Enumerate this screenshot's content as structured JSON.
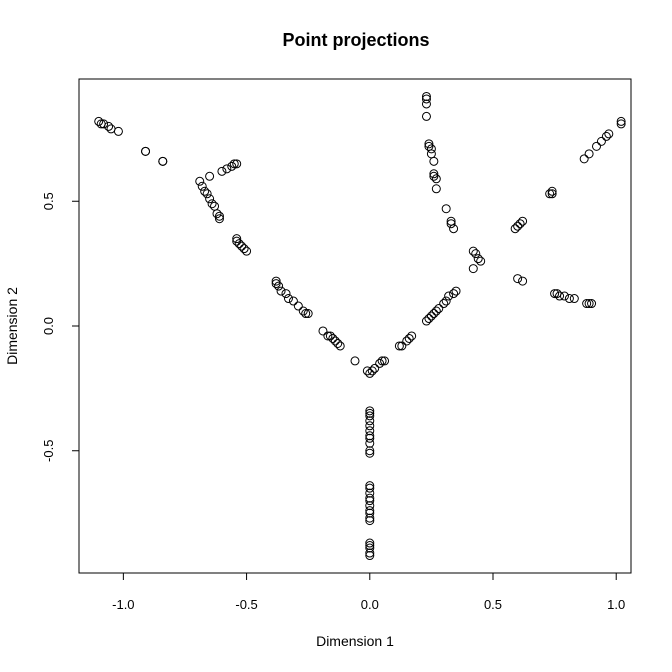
{
  "chart_data": {
    "type": "scatter",
    "title": "Point projections",
    "xlabel": "Dimension 1",
    "ylabel": "Dimension 2",
    "xlim": [
      -1.18,
      1.06
    ],
    "ylim": [
      -0.99,
      0.99
    ],
    "x_ticks": [
      -1.0,
      -0.5,
      0.0,
      0.5,
      1.0
    ],
    "x_tick_labels": [
      "-1.0",
      "-0.5",
      "0.0",
      "0.5",
      "1.0"
    ],
    "y_ticks": [
      -0.5,
      0.0,
      0.5
    ],
    "y_tick_labels": [
      "-0.5",
      "0.0",
      "0.5"
    ],
    "marker": "open-circle",
    "grid": false,
    "legend": "none",
    "points": [
      [
        -1.1,
        0.82
      ],
      [
        -1.09,
        0.81
      ],
      [
        -1.08,
        0.81
      ],
      [
        -1.06,
        0.8
      ],
      [
        -1.05,
        0.79
      ],
      [
        -1.02,
        0.78
      ],
      [
        -0.91,
        0.7
      ],
      [
        -0.91,
        0.7
      ],
      [
        -0.84,
        0.66
      ],
      [
        -0.84,
        0.66
      ],
      [
        -0.55,
        0.65
      ],
      [
        -0.54,
        0.65
      ],
      [
        -0.56,
        0.64
      ],
      [
        -0.58,
        0.63
      ],
      [
        -0.6,
        0.62
      ],
      [
        -0.65,
        0.6
      ],
      [
        -0.69,
        0.58
      ],
      [
        -0.68,
        0.56
      ],
      [
        -0.67,
        0.54
      ],
      [
        -0.66,
        0.53
      ],
      [
        -0.65,
        0.51
      ],
      [
        -0.64,
        0.49
      ],
      [
        -0.63,
        0.48
      ],
      [
        -0.62,
        0.45
      ],
      [
        -0.61,
        0.44
      ],
      [
        -0.61,
        0.43
      ],
      [
        -0.54,
        0.35
      ],
      [
        -0.54,
        0.34
      ],
      [
        -0.53,
        0.33
      ],
      [
        -0.52,
        0.32
      ],
      [
        -0.51,
        0.31
      ],
      [
        -0.5,
        0.3
      ],
      [
        -0.38,
        0.18
      ],
      [
        -0.38,
        0.17
      ],
      [
        -0.37,
        0.16
      ],
      [
        -0.36,
        0.14
      ],
      [
        -0.34,
        0.13
      ],
      [
        -0.33,
        0.11
      ],
      [
        -0.31,
        0.1
      ],
      [
        -0.29,
        0.08
      ],
      [
        -0.27,
        0.06
      ],
      [
        -0.26,
        0.05
      ],
      [
        -0.25,
        0.05
      ],
      [
        -0.19,
        -0.02
      ],
      [
        -0.17,
        -0.04
      ],
      [
        -0.16,
        -0.04
      ],
      [
        -0.15,
        -0.05
      ],
      [
        -0.14,
        -0.06
      ],
      [
        -0.13,
        -0.07
      ],
      [
        -0.12,
        -0.08
      ],
      [
        -0.06,
        -0.14
      ],
      [
        -0.01,
        -0.18
      ],
      [
        0.0,
        -0.19
      ],
      [
        0.01,
        -0.18
      ],
      [
        0.02,
        -0.17
      ],
      [
        0.04,
        -0.15
      ],
      [
        0.05,
        -0.14
      ],
      [
        0.06,
        -0.14
      ],
      [
        0.12,
        -0.08
      ],
      [
        0.13,
        -0.08
      ],
      [
        0.15,
        -0.06
      ],
      [
        0.16,
        -0.05
      ],
      [
        0.17,
        -0.04
      ],
      [
        0.23,
        0.02
      ],
      [
        0.24,
        0.03
      ],
      [
        0.25,
        0.04
      ],
      [
        0.26,
        0.05
      ],
      [
        0.27,
        0.06
      ],
      [
        0.28,
        0.07
      ],
      [
        0.3,
        0.09
      ],
      [
        0.31,
        0.1
      ],
      [
        0.32,
        0.12
      ],
      [
        0.34,
        0.13
      ],
      [
        0.35,
        0.14
      ],
      [
        0.42,
        0.3
      ],
      [
        0.43,
        0.29
      ],
      [
        0.44,
        0.27
      ],
      [
        0.45,
        0.26
      ],
      [
        0.42,
        0.23
      ],
      [
        0.59,
        0.39
      ],
      [
        0.6,
        0.4
      ],
      [
        0.61,
        0.41
      ],
      [
        0.62,
        0.42
      ],
      [
        0.73,
        0.53
      ],
      [
        0.74,
        0.54
      ],
      [
        0.74,
        0.53
      ],
      [
        0.6,
        0.19
      ],
      [
        0.62,
        0.18
      ],
      [
        0.75,
        0.13
      ],
      [
        0.76,
        0.13
      ],
      [
        0.77,
        0.12
      ],
      [
        0.79,
        0.12
      ],
      [
        0.81,
        0.11
      ],
      [
        0.83,
        0.11
      ],
      [
        0.88,
        0.09
      ],
      [
        0.9,
        0.09
      ],
      [
        0.89,
        0.09
      ],
      [
        0.87,
        0.67
      ],
      [
        0.89,
        0.69
      ],
      [
        0.92,
        0.72
      ],
      [
        0.94,
        0.74
      ],
      [
        0.96,
        0.76
      ],
      [
        0.97,
        0.77
      ],
      [
        1.02,
        0.81
      ],
      [
        1.02,
        0.82
      ],
      [
        0.23,
        0.92
      ],
      [
        0.23,
        0.91
      ],
      [
        0.23,
        0.89
      ],
      [
        0.23,
        0.84
      ],
      [
        0.24,
        0.73
      ],
      [
        0.24,
        0.72
      ],
      [
        0.25,
        0.71
      ],
      [
        0.25,
        0.69
      ],
      [
        0.26,
        0.66
      ],
      [
        0.26,
        0.61
      ],
      [
        0.26,
        0.6
      ],
      [
        0.27,
        0.59
      ],
      [
        0.27,
        0.55
      ],
      [
        0.31,
        0.47
      ],
      [
        0.33,
        0.42
      ],
      [
        0.33,
        0.41
      ],
      [
        0.34,
        0.39
      ],
      [
        0.0,
        -0.34
      ],
      [
        0.0,
        -0.35
      ],
      [
        0.0,
        -0.36
      ],
      [
        0.0,
        -0.38
      ],
      [
        0.0,
        -0.4
      ],
      [
        0.0,
        -0.42
      ],
      [
        0.0,
        -0.44
      ],
      [
        0.0,
        -0.45
      ],
      [
        0.0,
        -0.47
      ],
      [
        0.0,
        -0.5
      ],
      [
        0.0,
        -0.51
      ],
      [
        0.0,
        -0.64
      ],
      [
        0.0,
        -0.65
      ],
      [
        0.0,
        -0.67
      ],
      [
        0.0,
        -0.69
      ],
      [
        0.0,
        -0.7
      ],
      [
        0.0,
        -0.72
      ],
      [
        0.0,
        -0.74
      ],
      [
        0.0,
        -0.75
      ],
      [
        0.0,
        -0.77
      ],
      [
        0.0,
        -0.78
      ],
      [
        0.0,
        -0.87
      ],
      [
        0.0,
        -0.88
      ],
      [
        0.0,
        -0.89
      ],
      [
        0.0,
        -0.91
      ],
      [
        0.0,
        -0.92
      ]
    ]
  }
}
